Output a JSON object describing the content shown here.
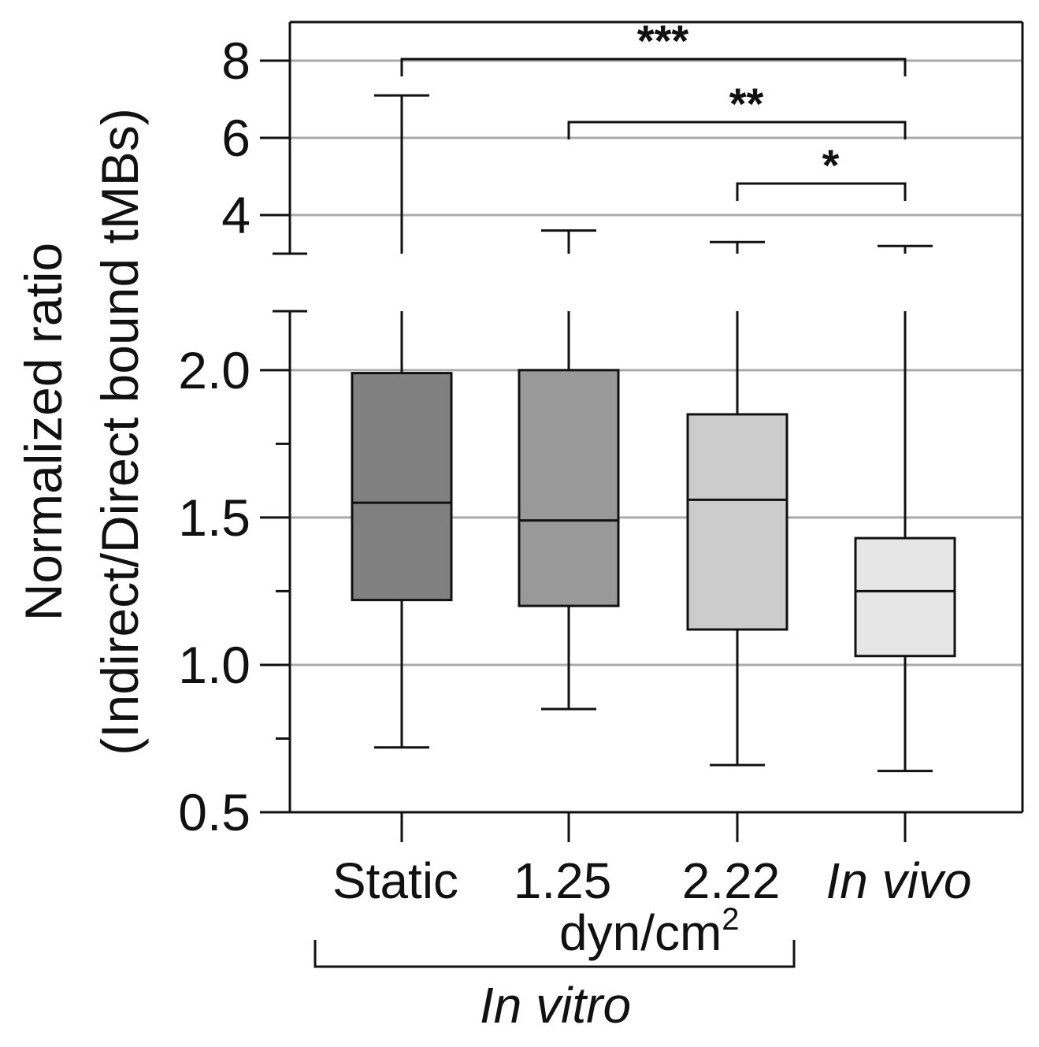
{
  "chart_data": {
    "type": "box",
    "ylabel_line1": "Normalized ratio",
    "ylabel_line2": "(Indirect/Direct bound tMBs)",
    "y_axis": {
      "lower_segment_range": [
        0.5,
        2.2
      ],
      "upper_segment_range": [
        3,
        9
      ],
      "lower_ticks": [
        {
          "value": 0.5,
          "label": "0.5"
        },
        {
          "value": 1.0,
          "label": "1.0"
        },
        {
          "value": 1.5,
          "label": "1.5"
        },
        {
          "value": 2.0,
          "label": "2.0"
        }
      ],
      "minor_ticks": [
        0.75,
        1.25,
        1.75
      ],
      "upper_ticks": [
        {
          "value": 4,
          "label": "4"
        },
        {
          "value": 6,
          "label": "6"
        },
        {
          "value": 8,
          "label": "8"
        }
      ],
      "axis_break": true
    },
    "grid": true,
    "categories": [
      "Static",
      "1.25",
      "2.22",
      "In vivo"
    ],
    "italic_categories": [
      "In vivo"
    ],
    "boxes": [
      {
        "category": "Static",
        "whisker_low": 0.72,
        "q1": 1.22,
        "median": 1.55,
        "q3": 1.99,
        "whisker_high": 7.1,
        "color": "#808080"
      },
      {
        "category": "1.25",
        "whisker_low": 0.85,
        "q1": 1.2,
        "median": 1.49,
        "q3": 2.0,
        "whisker_high": 3.6,
        "color": "#999999"
      },
      {
        "category": "2.22",
        "whisker_low": 0.66,
        "q1": 1.12,
        "median": 1.56,
        "q3": 1.85,
        "whisker_high": 3.3,
        "color": "#cccccc"
      },
      {
        "category": "In vivo",
        "whisker_low": 0.64,
        "q1": 1.03,
        "median": 1.25,
        "q3": 1.43,
        "whisker_high": 3.2,
        "color": "#e6e6e6"
      }
    ],
    "units_label_base": "dyn/cm",
    "units_label_sup": "2",
    "group_label": "In vitro",
    "significance": [
      {
        "from": "Static",
        "to": "In vivo",
        "label": "***"
      },
      {
        "from": "1.25",
        "to": "In vivo",
        "label": "**"
      },
      {
        "from": "2.22",
        "to": "In vivo",
        "label": "*"
      }
    ]
  }
}
